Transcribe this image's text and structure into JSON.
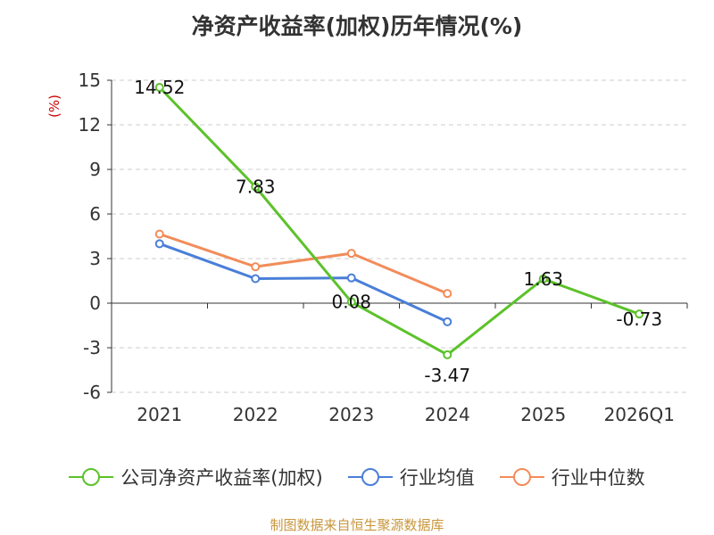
{
  "chart_data": {
    "type": "line",
    "title": "净资产收益率(加权)历年情况(%)",
    "ylabel": "(%)",
    "categories": [
      "2021",
      "2022",
      "2023",
      "2024",
      "2025",
      "2026Q1"
    ],
    "ylim": [
      -6,
      15
    ],
    "yticks": [
      15,
      12,
      9,
      6,
      3,
      0,
      -3,
      -6
    ],
    "grid": true,
    "legend_position": "bottom",
    "series": [
      {
        "name": "公司净资产收益率(加权)",
        "color": "#5cc22a",
        "values": [
          14.52,
          7.83,
          0.08,
          -3.47,
          1.63,
          -0.73
        ],
        "labels": [
          "14.52",
          "7.83",
          "0.08",
          "-3.47",
          "1.63",
          "-0.73"
        ]
      },
      {
        "name": "行业均值",
        "color": "#4a7fd8",
        "values": [
          4.0,
          1.65,
          1.7,
          -1.25,
          null,
          null
        ]
      },
      {
        "name": "行业中位数",
        "color": "#f28c5a",
        "values": [
          4.65,
          2.45,
          3.35,
          0.65,
          null,
          null
        ]
      }
    ]
  },
  "source": "制图数据来自恒生聚源数据库"
}
